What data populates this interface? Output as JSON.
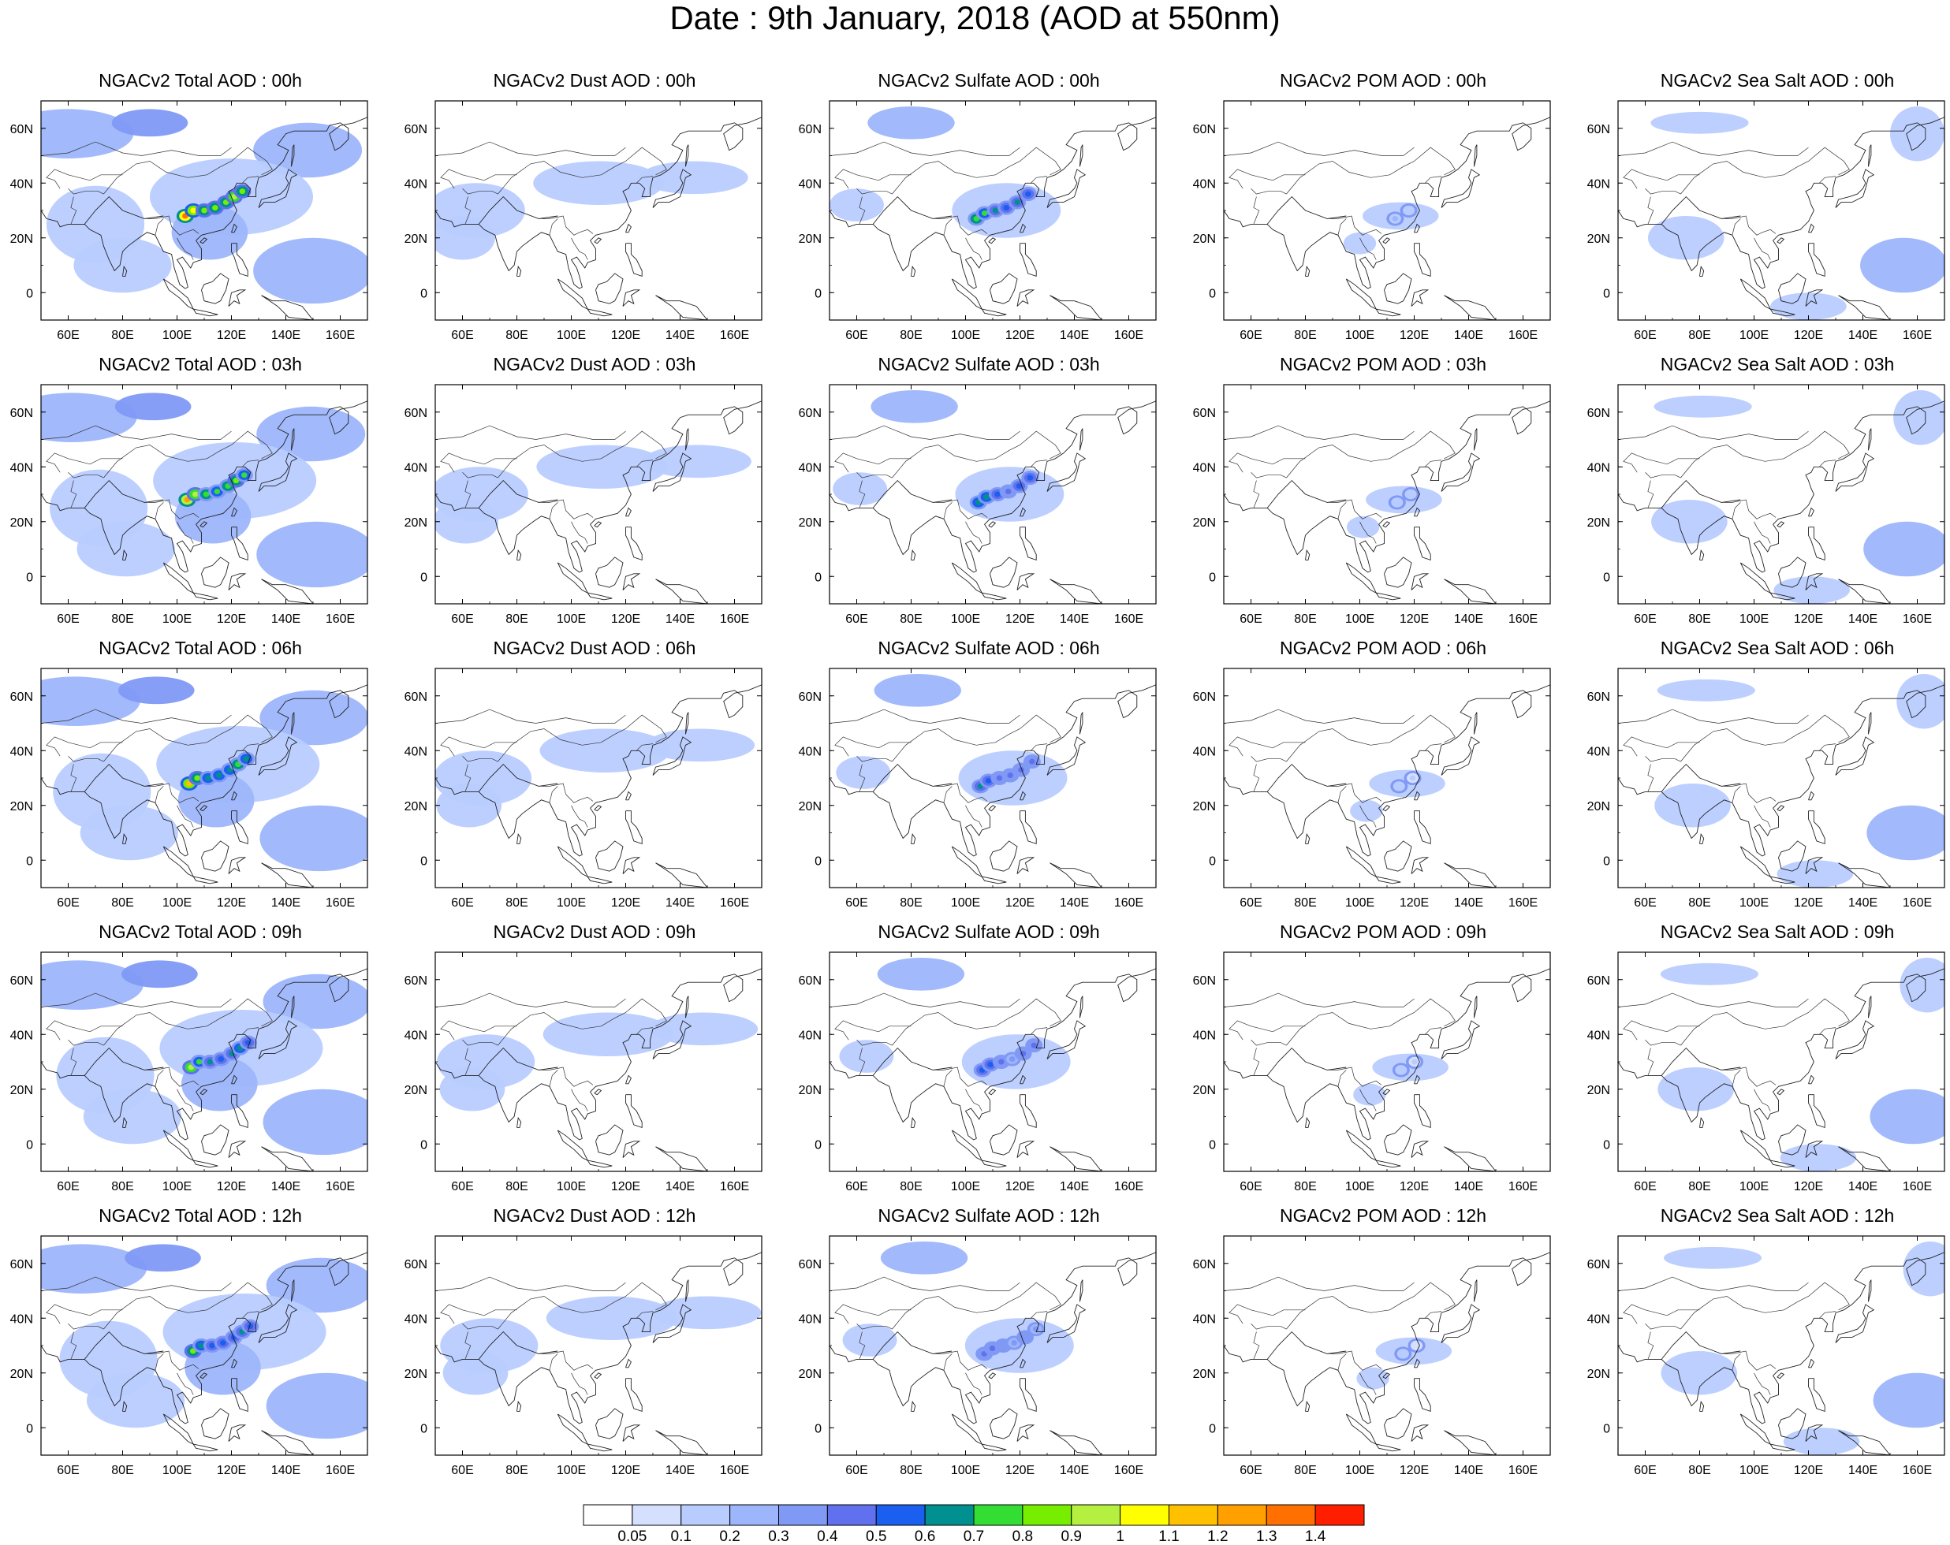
{
  "title": "Date : 9th January, 2018 (AOD at 550nm)",
  "axes": {
    "x_ticks": [
      "60E",
      "80E",
      "100E",
      "120E",
      "140E",
      "160E"
    ],
    "y_ticks": [
      "60N",
      "40N",
      "20N",
      "0"
    ],
    "x_range_lon": [
      50,
      170
    ],
    "y_range_lat": [
      -10,
      70
    ]
  },
  "panels": [
    [
      {
        "title": "NGACv2 Total AOD : 00h",
        "layer": "total",
        "hour": 0
      },
      {
        "title": "NGACv2 Dust AOD : 00h",
        "layer": "dust",
        "hour": 0
      },
      {
        "title": "NGACv2 Sulfate AOD : 00h",
        "layer": "sulfate",
        "hour": 0
      },
      {
        "title": "NGACv2 POM AOD : 00h",
        "layer": "pom",
        "hour": 0
      },
      {
        "title": "NGACv2 Sea Salt AOD : 00h",
        "layer": "seasalt",
        "hour": 0
      }
    ],
    [
      {
        "title": "NGACv2 Total AOD : 03h",
        "layer": "total",
        "hour": 3
      },
      {
        "title": "NGACv2 Dust AOD : 03h",
        "layer": "dust",
        "hour": 3
      },
      {
        "title": "NGACv2 Sulfate AOD : 03h",
        "layer": "sulfate",
        "hour": 3
      },
      {
        "title": "NGACv2 POM AOD : 03h",
        "layer": "pom",
        "hour": 3
      },
      {
        "title": "NGACv2 Sea Salt AOD : 03h",
        "layer": "seasalt",
        "hour": 3
      }
    ],
    [
      {
        "title": "NGACv2 Total AOD : 06h",
        "layer": "total",
        "hour": 6
      },
      {
        "title": "NGACv2 Dust AOD : 06h",
        "layer": "dust",
        "hour": 6
      },
      {
        "title": "NGACv2 Sulfate AOD : 06h",
        "layer": "sulfate",
        "hour": 6
      },
      {
        "title": "NGACv2 POM AOD : 06h",
        "layer": "pom",
        "hour": 6
      },
      {
        "title": "NGACv2 Sea Salt AOD : 06h",
        "layer": "seasalt",
        "hour": 6
      }
    ],
    [
      {
        "title": "NGACv2 Total AOD : 09h",
        "layer": "total",
        "hour": 9
      },
      {
        "title": "NGACv2 Dust AOD : 09h",
        "layer": "dust",
        "hour": 9
      },
      {
        "title": "NGACv2 Sulfate AOD : 09h",
        "layer": "sulfate",
        "hour": 9
      },
      {
        "title": "NGACv2 POM AOD : 09h",
        "layer": "pom",
        "hour": 9
      },
      {
        "title": "NGACv2 Sea Salt  AOD : 09h",
        "layer": "seasalt",
        "hour": 9
      }
    ],
    [
      {
        "title": "NGACv2 Total AOD  : 12h",
        "layer": "total",
        "hour": 12
      },
      {
        "title": "NGACv2 Dust AOD : 12h",
        "layer": "dust",
        "hour": 12
      },
      {
        "title": "NGACv2 Sulfate AOD : 12h",
        "layer": "sulfate",
        "hour": 12
      },
      {
        "title": "NGACv2 POM  AOD : 12h",
        "layer": "pom",
        "hour": 12
      },
      {
        "title": "NGACv2 Sea Salt  AOD : 12h",
        "layer": "seasalt",
        "hour": 12
      }
    ]
  ],
  "colorbar": {
    "labels": [
      "0.05",
      "0.1",
      "0.2",
      "0.3",
      "0.4",
      "0.5",
      "0.6",
      "0.7",
      "0.8",
      "0.9",
      "1",
      "1.1",
      "1.2",
      "1.3",
      "1.4"
    ],
    "colors": [
      "#ffffff",
      "#d5e0ff",
      "#b8ccff",
      "#9db5fb",
      "#8099f5",
      "#6070ee",
      "#1a5ff0",
      "#009090",
      "#33dd33",
      "#77ee00",
      "#b5f040",
      "#ffff00",
      "#ffc000",
      "#ffa000",
      "#ff7000",
      "#ff1e00"
    ]
  },
  "regions": {
    "total": [
      {
        "lon": 60,
        "lat": 58,
        "rx": 24,
        "ry": 9,
        "v": 0.22
      },
      {
        "lon": 90,
        "lat": 62,
        "rx": 14,
        "ry": 5,
        "v": 0.32
      },
      {
        "lon": 148,
        "lat": 52,
        "rx": 20,
        "ry": 10,
        "v": 0.2
      },
      {
        "lon": 70,
        "lat": 25,
        "rx": 18,
        "ry": 14,
        "v": 0.18
      },
      {
        "lon": 80,
        "lat": 10,
        "rx": 18,
        "ry": 10,
        "v": 0.12
      },
      {
        "lon": 150,
        "lat": 8,
        "rx": 22,
        "ry": 12,
        "v": 0.2
      },
      {
        "lon": 120,
        "lat": 35,
        "rx": 30,
        "ry": 14,
        "v": 0.14
      },
      {
        "lon": 112,
        "lat": 22,
        "rx": 14,
        "ry": 10,
        "v": 0.22
      }
    ],
    "dust": [
      {
        "lon": 65,
        "lat": 30,
        "rx": 18,
        "ry": 10,
        "v": 0.14
      },
      {
        "lon": 110,
        "lat": 40,
        "rx": 24,
        "ry": 8,
        "v": 0.12
      },
      {
        "lon": 145,
        "lat": 42,
        "rx": 20,
        "ry": 6,
        "v": 0.11
      },
      {
        "lon": 60,
        "lat": 20,
        "rx": 12,
        "ry": 8,
        "v": 0.12
      }
    ],
    "sulfate": [
      {
        "lon": 80,
        "lat": 62,
        "rx": 16,
        "ry": 6,
        "v": 0.22
      },
      {
        "lon": 115,
        "lat": 30,
        "rx": 20,
        "ry": 10,
        "v": 0.14
      },
      {
        "lon": 60,
        "lat": 32,
        "rx": 10,
        "ry": 6,
        "v": 0.11
      }
    ],
    "pom": [
      {
        "lon": 115,
        "lat": 28,
        "rx": 14,
        "ry": 5,
        "v": 0.12
      },
      {
        "lon": 100,
        "lat": 18,
        "rx": 6,
        "ry": 4,
        "v": 0.11
      }
    ],
    "seasalt": [
      {
        "lon": 80,
        "lat": 62,
        "rx": 18,
        "ry": 4,
        "v": 0.12
      },
      {
        "lon": 155,
        "lat": 10,
        "rx": 16,
        "ry": 10,
        "v": 0.2
      },
      {
        "lon": 160,
        "lat": 58,
        "rx": 10,
        "ry": 10,
        "v": 0.14
      },
      {
        "lon": 75,
        "lat": 20,
        "rx": 14,
        "ry": 8,
        "v": 0.1
      },
      {
        "lon": 120,
        "lat": -5,
        "rx": 14,
        "ry": 5,
        "v": 0.1
      }
    ]
  },
  "plumes": {
    "total": [
      [
        103,
        28,
        1.35
      ],
      [
        106,
        30,
        1.0
      ],
      [
        110,
        30,
        0.85
      ],
      [
        114,
        31,
        0.8
      ],
      [
        118,
        33,
        0.85
      ],
      [
        121,
        35,
        0.95
      ],
      [
        124,
        37,
        0.8
      ]
    ],
    "sulfate": [
      [
        104,
        27,
        0.75
      ],
      [
        107,
        29,
        0.7
      ],
      [
        111,
        30,
        0.6
      ],
      [
        115,
        31,
        0.5
      ],
      [
        119,
        33,
        0.6
      ],
      [
        123,
        36,
        0.55
      ]
    ],
    "pom": [
      [
        113,
        27,
        0.2
      ],
      [
        118,
        30,
        0.15
      ]
    ]
  },
  "coast": {
    "asia": [
      [
        50,
        30
      ],
      [
        52,
        27
      ],
      [
        56,
        26
      ],
      [
        57,
        24
      ],
      [
        60,
        25
      ],
      [
        63,
        25
      ],
      [
        66,
        25
      ],
      [
        68,
        23
      ],
      [
        72,
        21
      ],
      [
        73,
        17
      ],
      [
        75,
        12
      ],
      [
        77,
        8
      ],
      [
        79,
        10
      ],
      [
        80,
        15
      ],
      [
        82,
        17
      ],
      [
        86,
        20
      ],
      [
        89,
        22
      ],
      [
        92,
        21
      ],
      [
        94,
        17
      ],
      [
        95,
        15
      ],
      [
        98,
        14
      ],
      [
        99,
        9
      ],
      [
        100,
        6
      ],
      [
        101,
        3
      ],
      [
        103,
        1.5
      ],
      [
        104,
        2
      ],
      [
        103,
        6
      ],
      [
        102,
        9
      ],
      [
        100,
        12
      ],
      [
        102,
        13
      ],
      [
        105,
        9
      ],
      [
        106,
        11
      ],
      [
        109,
        12
      ],
      [
        109,
        16
      ],
      [
        107,
        19
      ],
      [
        109,
        21
      ],
      [
        113,
        22
      ],
      [
        117,
        23
      ],
      [
        120,
        26
      ],
      [
        122,
        30
      ],
      [
        121,
        32
      ],
      [
        120,
        35
      ],
      [
        119,
        37
      ],
      [
        121,
        38
      ],
      [
        122,
        40
      ],
      [
        125,
        40
      ],
      [
        127,
        38
      ],
      [
        126,
        35
      ],
      [
        129,
        35
      ],
      [
        129,
        38
      ],
      [
        130,
        42
      ],
      [
        133,
        43
      ],
      [
        136,
        45
      ],
      [
        139,
        48
      ],
      [
        141,
        52
      ],
      [
        137,
        54
      ],
      [
        140,
        58
      ],
      [
        143,
        59
      ],
      [
        150,
        59
      ],
      [
        155,
        59
      ],
      [
        156,
        61
      ],
      [
        160,
        62
      ],
      [
        163,
        60
      ],
      [
        163,
        56
      ],
      [
        160,
        53
      ],
      [
        158,
        52
      ],
      [
        157,
        55
      ],
      [
        156,
        58
      ],
      [
        160,
        61
      ],
      [
        165,
        62
      ],
      [
        170,
        64
      ]
    ],
    "india_north": [
      [
        66,
        25
      ],
      [
        70,
        30
      ],
      [
        75,
        35
      ],
      [
        80,
        30
      ],
      [
        88,
        27
      ],
      [
        95,
        28
      ]
    ],
    "japan": [
      [
        130,
        31
      ],
      [
        131,
        34
      ],
      [
        135,
        35
      ],
      [
        138,
        36
      ],
      [
        140,
        38
      ],
      [
        141,
        40
      ],
      [
        140,
        42
      ],
      [
        141,
        45
      ],
      [
        144,
        43
      ],
      [
        142,
        42
      ],
      [
        141,
        38
      ],
      [
        140,
        35
      ],
      [
        136,
        33
      ],
      [
        132,
        33
      ],
      [
        130,
        31
      ]
    ],
    "taiwan": [
      [
        120,
        22
      ],
      [
        121,
        25
      ],
      [
        122,
        24
      ],
      [
        121,
        22
      ],
      [
        120,
        22
      ]
    ],
    "sri_lanka": [
      [
        80,
        6
      ],
      [
        80.5,
        9.5
      ],
      [
        81.5,
        8
      ],
      [
        81,
        6
      ],
      [
        80,
        6
      ]
    ],
    "borneo": [
      [
        109,
        1
      ],
      [
        110,
        3
      ],
      [
        113,
        4
      ],
      [
        116,
        7
      ],
      [
        119,
        5
      ],
      [
        118,
        1
      ],
      [
        116,
        -3
      ],
      [
        114,
        -4
      ],
      [
        110,
        -3
      ],
      [
        109,
        1
      ]
    ],
    "sumatra": [
      [
        95,
        5
      ],
      [
        98,
        3
      ],
      [
        104,
        -2
      ],
      [
        106,
        -6
      ],
      [
        104,
        -5
      ],
      [
        101,
        -2
      ],
      [
        97,
        1
      ],
      [
        95,
        5
      ]
    ],
    "java": [
      [
        106,
        -6
      ],
      [
        111,
        -7
      ],
      [
        115,
        -8
      ],
      [
        112,
        -8.5
      ],
      [
        107,
        -7.5
      ],
      [
        106,
        -6
      ]
    ],
    "sulawesi": [
      [
        119,
        -5
      ],
      [
        120,
        0
      ],
      [
        123,
        1
      ],
      [
        125,
        1
      ],
      [
        122,
        -1
      ],
      [
        123,
        -4
      ],
      [
        121,
        -3
      ],
      [
        119,
        -5
      ]
    ],
    "philippines": [
      [
        120,
        18
      ],
      [
        122,
        18
      ],
      [
        122,
        14
      ],
      [
        124,
        12
      ],
      [
        126,
        8
      ],
      [
        126,
        6
      ],
      [
        123,
        7
      ],
      [
        122,
        10
      ],
      [
        121,
        13
      ],
      [
        120,
        15
      ],
      [
        120,
        18
      ]
    ],
    "new_guinea": [
      [
        131,
        -1
      ],
      [
        135,
        -3
      ],
      [
        140,
        -3
      ],
      [
        146,
        -5
      ],
      [
        150,
        -10
      ],
      [
        141,
        -9
      ],
      [
        137,
        -5
      ],
      [
        131,
        -1
      ]
    ],
    "hainan": [
      [
        108.5,
        18.5
      ],
      [
        110,
        20
      ],
      [
        111,
        19.5
      ],
      [
        109.5,
        18
      ],
      [
        108.5,
        18.5
      ]
    ],
    "sakhalin": [
      [
        142,
        46
      ],
      [
        143,
        50
      ],
      [
        143,
        54
      ],
      [
        142.5,
        53
      ],
      [
        142,
        46
      ]
    ],
    "borders": [
      [
        [
          73,
          36
        ],
        [
          78,
          42
        ],
        [
          85,
          47
        ],
        [
          90,
          48
        ],
        [
          96,
          44
        ],
        [
          104,
          42
        ],
        [
          111,
          43
        ],
        [
          116,
          46
        ],
        [
          120,
          48
        ],
        [
          126,
          53
        ],
        [
          133,
          48
        ],
        [
          135,
          45
        ],
        [
          131,
          43
        ]
      ],
      [
        [
          60,
          38
        ],
        [
          62,
          36
        ],
        [
          66,
          37
        ],
        [
          71,
          37
        ],
        [
          73,
          36
        ]
      ],
      [
        [
          57,
          38
        ],
        [
          55,
          41
        ],
        [
          52,
          42
        ],
        [
          55,
          45
        ],
        [
          60,
          43
        ],
        [
          68,
          41
        ],
        [
          72,
          43
        ],
        [
          80,
          43
        ]
      ],
      [
        [
          50,
          50
        ],
        [
          60,
          51
        ],
        [
          70,
          55
        ],
        [
          80,
          51
        ],
        [
          87,
          50
        ],
        [
          98,
          52
        ],
        [
          108,
          50
        ],
        [
          116,
          50
        ],
        [
          120,
          53
        ]
      ],
      [
        [
          88,
          27
        ],
        [
          92,
          27
        ],
        [
          97,
          28
        ],
        [
          98,
          24
        ],
        [
          101,
          21
        ],
        [
          103,
          22
        ],
        [
          106,
          23
        ],
        [
          108,
          21.5
        ]
      ],
      [
        [
          100,
          20
        ],
        [
          101,
          18
        ],
        [
          103,
          15
        ],
        [
          105,
          14
        ],
        [
          106,
          12
        ]
      ],
      [
        [
          92,
          21
        ],
        [
          93,
          25
        ],
        [
          95,
          27
        ]
      ],
      [
        [
          61,
          25
        ],
        [
          63,
          30
        ],
        [
          61,
          31
        ],
        [
          62,
          35
        ]
      ],
      [
        [
          124,
          40
        ],
        [
          126,
          42
        ],
        [
          130,
          42.5
        ]
      ]
    ]
  }
}
